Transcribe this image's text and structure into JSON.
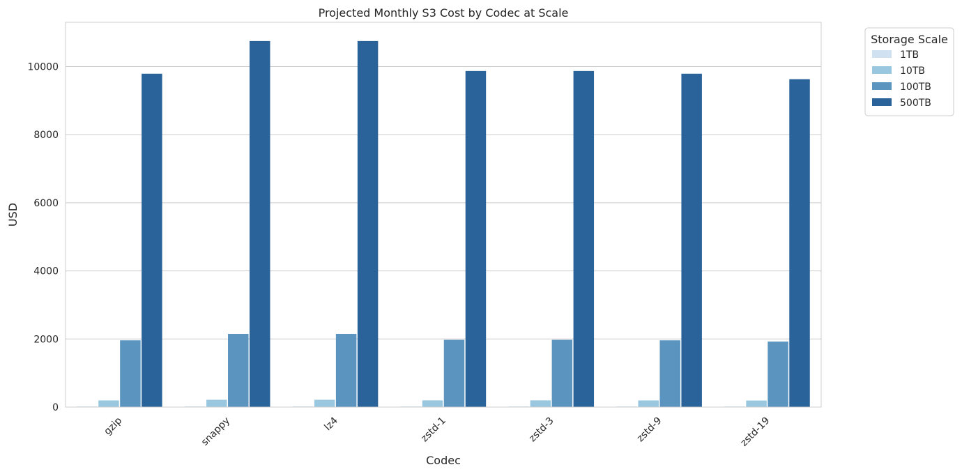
{
  "chart_data": {
    "type": "bar",
    "title": "Projected Monthly S3 Cost by Codec at Scale",
    "xlabel": "Codec",
    "ylabel": "USD",
    "ylim": [
      0,
      11300
    ],
    "yticks": [
      0,
      2000,
      4000,
      6000,
      8000,
      10000
    ],
    "grid": true,
    "legend": {
      "title": "Storage Scale",
      "placement": "outside-top-right"
    },
    "categories": [
      "gzip",
      "snappy",
      "lz4",
      "zstd-1",
      "zstd-3",
      "zstd-9",
      "zstd-19"
    ],
    "series": [
      {
        "name": "1TB",
        "color": "#d0e1f2",
        "values": [
          19.6,
          21.5,
          21.5,
          19.7,
          19.7,
          19.6,
          19.3
        ]
      },
      {
        "name": "10TB",
        "color": "#9ac7e0",
        "values": [
          196,
          215,
          215,
          197,
          197,
          196,
          193
        ]
      },
      {
        "name": "100TB",
        "color": "#5b95bf",
        "values": [
          1960,
          2150,
          2150,
          1975,
          1975,
          1960,
          1925
        ]
      },
      {
        "name": "500TB",
        "color": "#2a6399",
        "values": [
          9790,
          10750,
          10750,
          9870,
          9870,
          9790,
          9630
        ]
      }
    ]
  }
}
